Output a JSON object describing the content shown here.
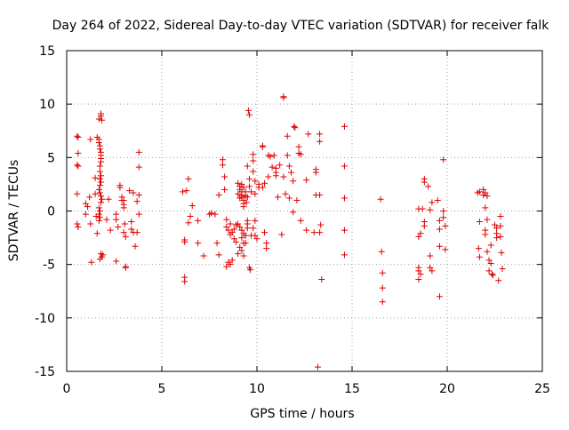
{
  "chart_data": {
    "type": "scatter",
    "title": "Day 264 of 2022, Sidereal Day-to-day VTEC variation (SDTVAR) for receiver falk",
    "xlabel": "GPS time / hours",
    "ylabel": "SDTVAR / TECUs",
    "xlim": [
      0,
      25
    ],
    "ylim": [
      -15,
      15
    ],
    "xticks": [
      "0",
      "5",
      "10",
      "15",
      "20",
      "25"
    ],
    "yticks": [
      "-15",
      "-10",
      "-5",
      "0",
      "5",
      "10",
      "15"
    ],
    "grid": true,
    "marker": "+",
    "color": "#e00000",
    "series": [
      {
        "name": "SDTVAR",
        "points": [
          [
            0.55,
            7.0
          ],
          [
            0.6,
            6.9
          ],
          [
            0.6,
            5.4
          ],
          [
            0.55,
            4.3
          ],
          [
            0.6,
            4.2
          ],
          [
            0.55,
            1.6
          ],
          [
            0.55,
            -1.2
          ],
          [
            0.6,
            -1.5
          ],
          [
            1.0,
            0.7
          ],
          [
            1.1,
            0.4
          ],
          [
            1.0,
            -0.3
          ],
          [
            1.2,
            1.3
          ],
          [
            1.25,
            -1.2
          ],
          [
            1.3,
            -4.8
          ],
          [
            1.25,
            6.7
          ],
          [
            1.6,
            6.9
          ],
          [
            1.7,
            6.7
          ],
          [
            1.7,
            6.4
          ],
          [
            1.75,
            6.1
          ],
          [
            1.75,
            5.8
          ],
          [
            1.8,
            5.5
          ],
          [
            1.8,
            5.2
          ],
          [
            1.8,
            4.9
          ],
          [
            1.8,
            4.6
          ],
          [
            1.75,
            4.2
          ],
          [
            1.75,
            3.7
          ],
          [
            1.8,
            3.3
          ],
          [
            1.75,
            3.0
          ],
          [
            1.8,
            2.7
          ],
          [
            1.75,
            2.4
          ],
          [
            1.7,
            2.0
          ],
          [
            1.75,
            1.7
          ],
          [
            1.8,
            1.4
          ],
          [
            1.85,
            1.1
          ],
          [
            1.8,
            0.8
          ],
          [
            1.7,
            0.3
          ],
          [
            1.75,
            0.0
          ],
          [
            1.7,
            -0.3
          ],
          [
            1.75,
            -0.6
          ],
          [
            1.7,
            -0.9
          ],
          [
            1.8,
            -4.0
          ],
          [
            1.85,
            -4.3
          ],
          [
            1.75,
            -4.5
          ],
          [
            1.9,
            -4.1
          ],
          [
            1.7,
            8.6
          ],
          [
            1.8,
            9.1
          ],
          [
            1.8,
            8.9
          ],
          [
            1.85,
            8.5
          ],
          [
            1.5,
            3.1
          ],
          [
            1.5,
            1.6
          ],
          [
            1.55,
            -0.5
          ],
          [
            1.6,
            -2.1
          ],
          [
            2.3,
            -1.8
          ],
          [
            2.2,
            1.1
          ],
          [
            2.1,
            -0.8
          ],
          [
            2.6,
            -0.3
          ],
          [
            2.6,
            -0.8
          ],
          [
            2.7,
            -1.5
          ],
          [
            2.8,
            2.2
          ],
          [
            2.8,
            2.4
          ],
          [
            2.9,
            1.3
          ],
          [
            2.9,
            1.0
          ],
          [
            3.0,
            0.6
          ],
          [
            3.0,
            0.3
          ],
          [
            3.0,
            1.0
          ],
          [
            3.05,
            -1.2
          ],
          [
            3.0,
            -2.0
          ],
          [
            3.1,
            -2.4
          ],
          [
            3.1,
            -5.2
          ],
          [
            3.1,
            -5.3
          ],
          [
            2.6,
            -4.7
          ],
          [
            3.3,
            1.9
          ],
          [
            3.4,
            -1.0
          ],
          [
            3.4,
            -1.7
          ],
          [
            3.5,
            -2.0
          ],
          [
            3.6,
            -3.3
          ],
          [
            3.5,
            1.7
          ],
          [
            3.8,
            5.5
          ],
          [
            3.8,
            4.1
          ],
          [
            3.8,
            1.5
          ],
          [
            3.7,
            0.9
          ],
          [
            3.8,
            -0.3
          ],
          [
            3.7,
            -2.0
          ],
          [
            6.1,
            1.8
          ],
          [
            6.2,
            -2.7
          ],
          [
            6.2,
            -2.9
          ],
          [
            6.2,
            -6.2
          ],
          [
            6.2,
            -6.6
          ],
          [
            6.4,
            3.0
          ],
          [
            6.3,
            1.9
          ],
          [
            6.4,
            -1.1
          ],
          [
            6.5,
            -0.5
          ],
          [
            6.6,
            0.5
          ],
          [
            6.9,
            -0.9
          ],
          [
            6.9,
            -3.0
          ],
          [
            7.2,
            -4.2
          ],
          [
            7.5,
            -0.3
          ],
          [
            7.6,
            -0.2
          ],
          [
            7.8,
            -0.3
          ],
          [
            7.9,
            -3.0
          ],
          [
            8.0,
            -4.1
          ],
          [
            8.0,
            1.5
          ],
          [
            8.2,
            4.8
          ],
          [
            8.2,
            4.3
          ],
          [
            8.3,
            3.2
          ],
          [
            8.3,
            2.0
          ],
          [
            8.4,
            -0.8
          ],
          [
            8.4,
            -1.5
          ],
          [
            8.5,
            -1.8
          ],
          [
            8.6,
            -1.2
          ],
          [
            8.6,
            -2.2
          ],
          [
            8.7,
            -2.0
          ],
          [
            8.8,
            -1.7
          ],
          [
            8.8,
            -2.6
          ],
          [
            8.9,
            -1.3
          ],
          [
            8.9,
            -2.9
          ],
          [
            8.5,
            -4.8
          ],
          [
            8.4,
            -5.2
          ],
          [
            8.6,
            -5.0
          ],
          [
            8.7,
            -4.6
          ],
          [
            9.0,
            2.6
          ],
          [
            9.1,
            2.3
          ],
          [
            9.1,
            2.0
          ],
          [
            9.2,
            1.8
          ],
          [
            9.2,
            1.5
          ],
          [
            9.2,
            1.3
          ],
          [
            9.3,
            1.0
          ],
          [
            9.3,
            0.7
          ],
          [
            9.3,
            0.4
          ],
          [
            9.2,
            2.5
          ],
          [
            9.0,
            1.6
          ],
          [
            9.1,
            1.2
          ],
          [
            9.3,
            2.2
          ],
          [
            9.4,
            1.8
          ],
          [
            9.4,
            1.4
          ],
          [
            9.0,
            -1.2
          ],
          [
            9.1,
            -1.5
          ],
          [
            9.2,
            -1.8
          ],
          [
            9.3,
            -2.1
          ],
          [
            9.2,
            -2.5
          ],
          [
            9.3,
            -3.0
          ],
          [
            9.1,
            -3.4
          ],
          [
            9.2,
            -3.7
          ],
          [
            9.0,
            -4.0
          ],
          [
            9.3,
            -4.2
          ],
          [
            9.4,
            -3.0
          ],
          [
            9.4,
            -2.3
          ],
          [
            9.5,
            -1.6
          ],
          [
            9.5,
            -1.2
          ],
          [
            9.5,
            -0.9
          ],
          [
            9.45,
            0.8
          ],
          [
            9.5,
            1.3
          ],
          [
            9.55,
            9.4
          ],
          [
            9.6,
            9.0
          ],
          [
            9.5,
            4.2
          ],
          [
            9.6,
            3.0
          ],
          [
            9.6,
            2.3
          ],
          [
            9.7,
            1.8
          ],
          [
            9.6,
            -5.3
          ],
          [
            9.65,
            -5.5
          ],
          [
            9.7,
            -2.3
          ],
          [
            9.8,
            -1.6
          ],
          [
            9.8,
            5.3
          ],
          [
            9.8,
            4.7
          ],
          [
            9.8,
            3.7
          ],
          [
            9.9,
            2.8
          ],
          [
            9.9,
            1.6
          ],
          [
            9.9,
            -0.9
          ],
          [
            9.9,
            -2.3
          ],
          [
            10.0,
            -2.6
          ],
          [
            10.1,
            2.5
          ],
          [
            10.1,
            2.2
          ],
          [
            10.3,
            6.1
          ],
          [
            10.3,
            6.0
          ],
          [
            10.3,
            2.2
          ],
          [
            10.4,
            2.6
          ],
          [
            10.4,
            -2.0
          ],
          [
            10.5,
            -3.0
          ],
          [
            10.5,
            -3.5
          ],
          [
            10.6,
            3.2
          ],
          [
            10.6,
            5.2
          ],
          [
            10.7,
            5.1
          ],
          [
            10.8,
            4.1
          ],
          [
            10.9,
            5.2
          ],
          [
            11.0,
            4.0
          ],
          [
            11.0,
            3.6
          ],
          [
            11.0,
            3.3
          ],
          [
            11.1,
            1.3
          ],
          [
            11.2,
            4.3
          ],
          [
            11.3,
            -2.2
          ],
          [
            11.4,
            10.7
          ],
          [
            11.4,
            10.6
          ],
          [
            11.4,
            3.2
          ],
          [
            11.5,
            1.6
          ],
          [
            11.6,
            7.0
          ],
          [
            11.6,
            5.2
          ],
          [
            11.7,
            4.2
          ],
          [
            11.7,
            1.2
          ],
          [
            11.8,
            3.6
          ],
          [
            11.9,
            2.8
          ],
          [
            11.9,
            -0.1
          ],
          [
            11.95,
            7.9
          ],
          [
            12.0,
            7.8
          ],
          [
            12.1,
            1.0
          ],
          [
            12.2,
            6.0
          ],
          [
            12.2,
            5.4
          ],
          [
            12.3,
            5.3
          ],
          [
            12.3,
            -0.9
          ],
          [
            12.6,
            -1.8
          ],
          [
            12.6,
            2.9
          ],
          [
            12.7,
            7.2
          ],
          [
            13.0,
            -2.0
          ],
          [
            13.1,
            3.9
          ],
          [
            13.1,
            3.6
          ],
          [
            13.1,
            1.5
          ],
          [
            13.2,
            -14.6
          ],
          [
            13.3,
            7.2
          ],
          [
            13.3,
            6.5
          ],
          [
            13.3,
            1.5
          ],
          [
            13.35,
            -1.3
          ],
          [
            13.3,
            -2.0
          ],
          [
            13.4,
            -6.4
          ],
          [
            14.6,
            7.9
          ],
          [
            14.6,
            4.2
          ],
          [
            14.6,
            1.2
          ],
          [
            14.6,
            -1.8
          ],
          [
            14.6,
            -4.1
          ],
          [
            16.5,
            1.1
          ],
          [
            16.55,
            -3.8
          ],
          [
            16.6,
            -5.8
          ],
          [
            16.6,
            -7.2
          ],
          [
            16.6,
            -8.5
          ],
          [
            18.5,
            -2.4
          ],
          [
            18.6,
            -2.1
          ],
          [
            18.5,
            -5.3
          ],
          [
            18.5,
            -5.6
          ],
          [
            18.6,
            -5.9
          ],
          [
            18.5,
            -6.4
          ],
          [
            18.5,
            0.2
          ],
          [
            18.8,
            3.0
          ],
          [
            18.8,
            2.7
          ],
          [
            18.7,
            0.2
          ],
          [
            18.8,
            -1.0
          ],
          [
            18.8,
            -1.4
          ],
          [
            19.0,
            2.3
          ],
          [
            19.1,
            -4.2
          ],
          [
            19.1,
            -5.3
          ],
          [
            19.2,
            -5.6
          ],
          [
            19.2,
            0.8
          ],
          [
            19.1,
            0.1
          ],
          [
            19.5,
            1.0
          ],
          [
            19.6,
            -0.9
          ],
          [
            19.6,
            -1.7
          ],
          [
            19.6,
            -3.3
          ],
          [
            19.6,
            -8.0
          ],
          [
            19.8,
            0.0
          ],
          [
            19.8,
            4.8
          ],
          [
            19.8,
            -0.6
          ],
          [
            19.9,
            -1.4
          ],
          [
            19.9,
            -3.6
          ],
          [
            21.6,
            1.7
          ],
          [
            21.7,
            1.8
          ],
          [
            21.7,
            -1.0
          ],
          [
            21.65,
            -3.5
          ],
          [
            21.7,
            -4.3
          ],
          [
            21.9,
            2.0
          ],
          [
            21.9,
            1.5
          ],
          [
            22.0,
            1.7
          ],
          [
            22.0,
            0.3
          ],
          [
            22.0,
            -1.8
          ],
          [
            22.0,
            -2.2
          ],
          [
            22.1,
            -3.8
          ],
          [
            22.2,
            -5.6
          ],
          [
            22.1,
            1.4
          ],
          [
            22.1,
            -0.8
          ],
          [
            22.2,
            -4.6
          ],
          [
            22.3,
            -3.2
          ],
          [
            22.3,
            -4.9
          ],
          [
            22.35,
            -5.9
          ],
          [
            22.4,
            -6.0
          ],
          [
            22.5,
            -1.3
          ],
          [
            22.6,
            -1.6
          ],
          [
            22.6,
            -2.1
          ],
          [
            22.6,
            -2.5
          ],
          [
            22.7,
            -6.5
          ],
          [
            22.8,
            -0.5
          ],
          [
            22.8,
            -1.4
          ],
          [
            22.8,
            -2.4
          ],
          [
            22.85,
            -3.9
          ],
          [
            22.9,
            -5.4
          ]
        ]
      }
    ]
  }
}
